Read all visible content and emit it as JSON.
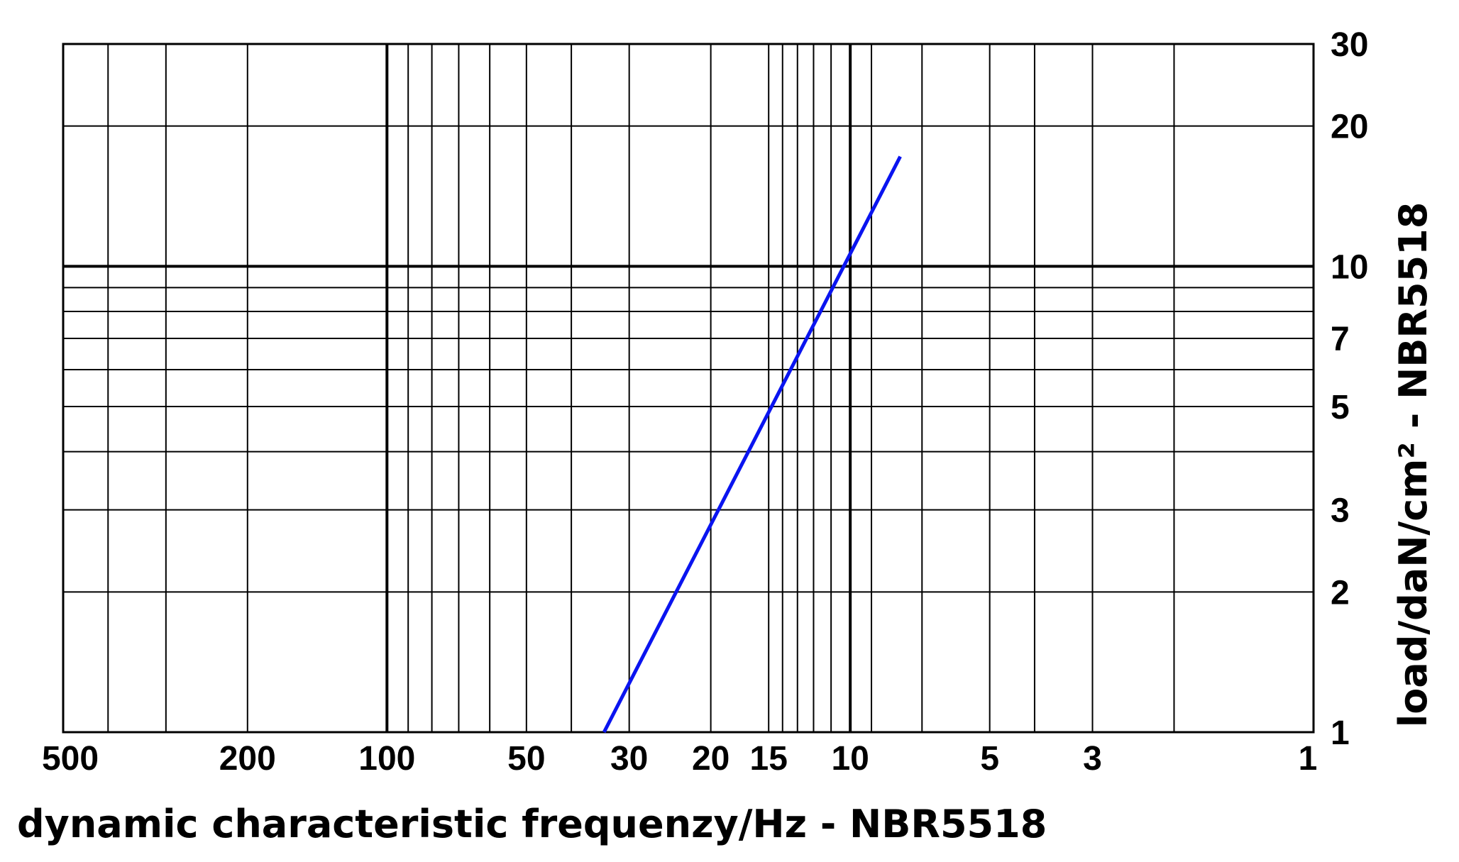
{
  "chart_data": {
    "type": "line",
    "xlabel": "dynamic characteristic frequenzy/Hz - NBR5518",
    "ylabel": "load/daN/cm² - NBR5518",
    "x": [
      34,
      7.8
    ],
    "values": [
      1,
      17.2
    ],
    "color": "#0a14f0",
    "xscale": "log",
    "yscale": "log",
    "xlim": [
      500,
      1
    ],
    "ylim": [
      1,
      30
    ],
    "xticks": [
      500,
      200,
      100,
      50,
      30,
      20,
      15,
      10,
      5,
      3,
      1
    ],
    "yticks": [
      1,
      2,
      3,
      5,
      7,
      10,
      20,
      30
    ],
    "x_minor_grid": [
      400,
      300,
      90,
      80,
      70,
      60,
      40,
      14,
      13,
      12,
      11,
      9,
      7,
      4,
      2
    ],
    "y_minor_grid": [
      4,
      6,
      8,
      9
    ],
    "grid": true
  }
}
